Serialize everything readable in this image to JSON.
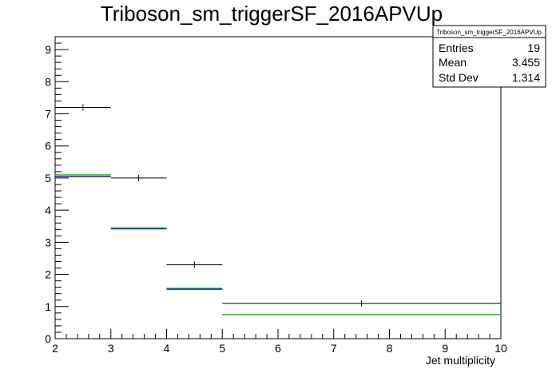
{
  "chart_data": {
    "type": "histogram",
    "title": "Triboson_sm_triggerSF_2016APVUp",
    "xlabel": "Jet multiplicity",
    "ylabel": "",
    "xlim": [
      2,
      10
    ],
    "ylim": [
      0,
      9.4
    ],
    "xticks": [
      "2",
      "3",
      "4",
      "5",
      "6",
      "7",
      "8",
      "9",
      "10"
    ],
    "yticks": [
      "0",
      "1",
      "2",
      "3",
      "4",
      "5",
      "6",
      "7",
      "8",
      "9"
    ],
    "bin_edges": [
      2,
      3,
      4,
      5,
      10
    ],
    "series": [
      {
        "color": "#000000",
        "style": "points-with-x-errors",
        "values": [
          7.2,
          5.0,
          2.3,
          1.1
        ]
      },
      {
        "color": "#00cc00",
        "style": "histogram",
        "values": [
          5.1,
          3.45,
          1.57,
          0.75
        ]
      },
      {
        "color": "#0000cc",
        "style": "histogram",
        "values": [
          5.05,
          3.42,
          1.54,
          0.75
        ]
      }
    ],
    "stats_box": {
      "title": "Triboson_sm_triggerSF_2016APVUp",
      "rows": [
        {
          "label": "Entries",
          "value": "19"
        },
        {
          "label": "Mean",
          "value": "3.455"
        },
        {
          "label": "Std Dev",
          "value": "1.314"
        }
      ]
    },
    "grid": false,
    "legend": "none"
  }
}
